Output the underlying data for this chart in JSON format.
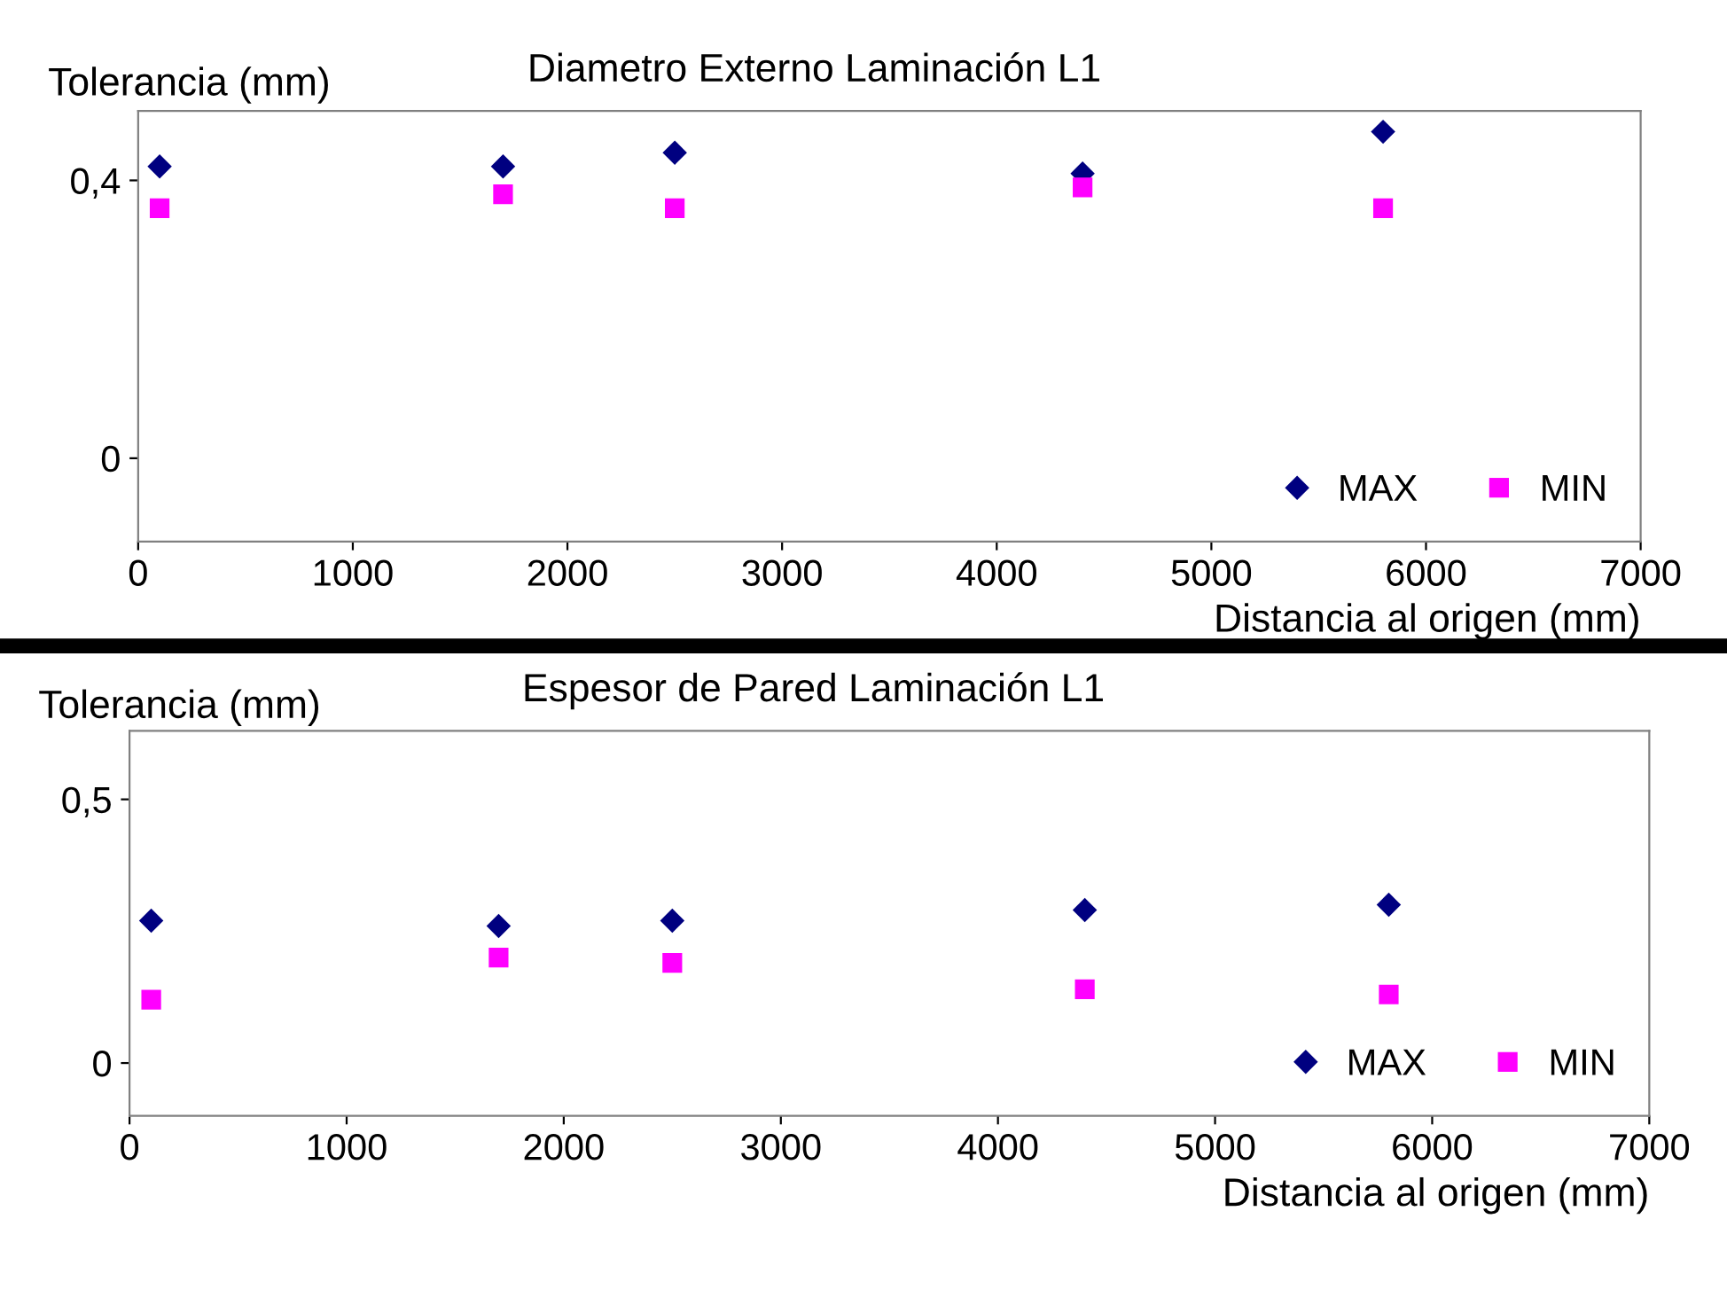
{
  "chart_data": [
    {
      "type": "scatter",
      "title": "Diametro Externo Laminación L1",
      "ylabel": "Tolerancia (mm)",
      "xlabel": "Distancia al origen (mm)",
      "xlim": [
        0,
        7000
      ],
      "xticks": [
        0,
        1000,
        2000,
        3000,
        4000,
        5000,
        6000,
        7000
      ],
      "ylim": [
        -0.12,
        0.5
      ],
      "yticks": [
        0,
        {
          "value": 0.4,
          "label": "0,4"
        }
      ],
      "legend": "bottom right",
      "grid": false,
      "series": [
        {
          "name": "MAX",
          "color": "#000080",
          "marker": "diamond",
          "x": [
            100,
            1700,
            2500,
            4400,
            5800
          ],
          "values": [
            0.42,
            0.42,
            0.44,
            0.41,
            0.47
          ]
        },
        {
          "name": "MIN",
          "color": "#ff00ff",
          "marker": "square",
          "x": [
            100,
            1700,
            2500,
            4400,
            5800
          ],
          "values": [
            0.36,
            0.38,
            0.36,
            0.39,
            0.36
          ]
        }
      ]
    },
    {
      "type": "scatter",
      "title": "Espesor de Pared Laminación L1",
      "ylabel": "Tolerancia (mm)",
      "xlabel": "Distancia al origen (mm)",
      "xlim": [
        0,
        7000
      ],
      "xticks": [
        0,
        1000,
        2000,
        3000,
        4000,
        5000,
        6000,
        7000
      ],
      "ylim": [
        -0.1,
        0.63
      ],
      "yticks": [
        0,
        {
          "value": 0.5,
          "label": "0,5"
        }
      ],
      "legend": "bottom right",
      "grid": false,
      "series": [
        {
          "name": "MAX",
          "color": "#000080",
          "marker": "diamond",
          "x": [
            100,
            1700,
            2500,
            4400,
            5800
          ],
          "values": [
            0.27,
            0.26,
            0.27,
            0.29,
            0.3
          ]
        },
        {
          "name": "MIN",
          "color": "#ff00ff",
          "marker": "square",
          "x": [
            100,
            1700,
            2500,
            4400,
            5800
          ],
          "values": [
            0.12,
            0.2,
            0.19,
            0.14,
            0.13
          ]
        }
      ]
    }
  ]
}
